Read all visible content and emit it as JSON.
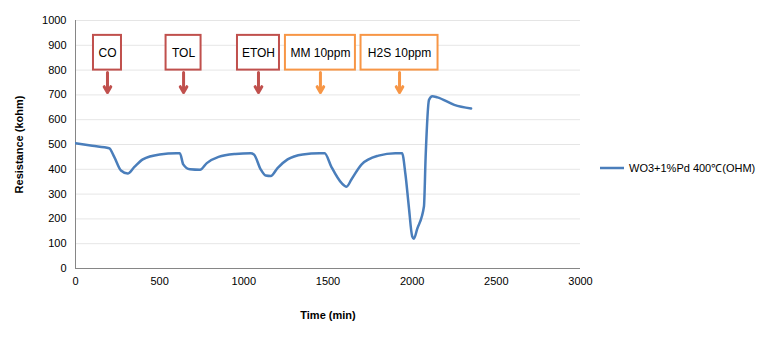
{
  "chart_data": {
    "type": "line",
    "x_label": "Time (min)",
    "y_label": "Resistance (kohm)",
    "xlim": [
      0,
      3000
    ],
    "xticks": [
      0,
      500,
      1000,
      1500,
      2000,
      2500,
      3000
    ],
    "ylim": [
      0,
      1000
    ],
    "yticks": [
      0,
      100,
      200,
      300,
      400,
      500,
      600,
      700,
      800,
      900,
      1000
    ],
    "grid": true,
    "legend": "right",
    "x": [
      0,
      100,
      200,
      230,
      270,
      310,
      350,
      400,
      500,
      600,
      620,
      640,
      680,
      740,
      780,
      850,
      950,
      1040,
      1060,
      1100,
      1130,
      1160,
      1200,
      1260,
      1350,
      1450,
      1480,
      1520,
      1580,
      1610,
      1640,
      1700,
      1800,
      1900,
      1940,
      1960,
      1980,
      2000,
      2010,
      2030,
      2070,
      2080,
      2100,
      2120,
      2150,
      2250,
      2350
    ],
    "series": [
      {
        "name": "WO3+1%Pd 400℃(OHM)",
        "color": "#4a7ebb",
        "values": [
          505,
          495,
          485,
          450,
          395,
          383,
          410,
          440,
          460,
          465,
          465,
          420,
          400,
          398,
          425,
          450,
          462,
          465,
          460,
          400,
          375,
          373,
          405,
          440,
          460,
          465,
          465,
          410,
          345,
          330,
          360,
          420,
          455,
          465,
          465,
          380,
          250,
          130,
          120,
          160,
          250,
          450,
          680,
          695,
          690,
          660,
          645
        ]
      }
    ],
    "annotations": [
      {
        "text": "CO",
        "x": 190,
        "color": "#c0504d"
      },
      {
        "text": "TOL",
        "x": 642,
        "color": "#c0504d"
      },
      {
        "text": "ETOH",
        "x": 1087,
        "color": "#c0504d"
      },
      {
        "text": "MM 10ppm",
        "x": 1455,
        "color": "#f79646"
      },
      {
        "text": "H2S 10ppm",
        "x": 1925,
        "color": "#f79646"
      }
    ]
  }
}
